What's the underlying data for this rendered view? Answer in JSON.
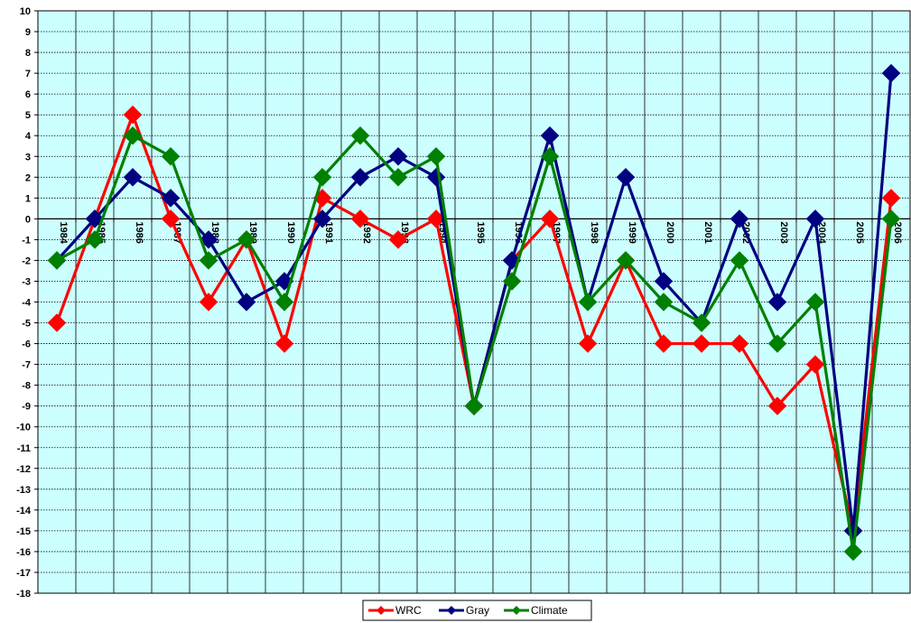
{
  "chart_data": {
    "type": "line",
    "title": "",
    "xlabel": "",
    "ylabel": "",
    "x": [
      "1984",
      "1985",
      "1986",
      "1987",
      "1988",
      "1989",
      "1990",
      "1991",
      "1992",
      "1993",
      "1994",
      "1995",
      "1996",
      "1997",
      "1998",
      "1999",
      "2000",
      "2001",
      "2002",
      "2003",
      "2004",
      "2005",
      "2006"
    ],
    "ylim": [
      -18,
      10
    ],
    "yticks": [
      "10",
      "9",
      "8",
      "7",
      "6",
      "5",
      "4",
      "3",
      "2",
      "1",
      "0",
      "-1",
      "-2",
      "-3",
      "-4",
      "-5",
      "-6",
      "-7",
      "-8",
      "-9",
      "-10",
      "-11",
      "-12",
      "-13",
      "-14",
      "-15",
      "-16",
      "-17",
      "-18"
    ],
    "grid": true,
    "legend_position": "bottom-center",
    "colors": {
      "plot_background": "#ccffff",
      "WRC": "#ff0000",
      "Gray": "#000080",
      "Climate": "#008000"
    },
    "series": [
      {
        "name": "WRC",
        "values": [
          -5,
          0,
          5,
          0,
          -4,
          -1,
          -6,
          1,
          0,
          -1,
          0,
          -9,
          -2,
          0,
          -6,
          -2,
          -6,
          -6,
          -6,
          -9,
          -7,
          -15,
          1
        ]
      },
      {
        "name": "Gray",
        "values": [
          -2,
          0,
          2,
          1,
          -1,
          -4,
          -3,
          0,
          2,
          3,
          2,
          -9,
          -2,
          4,
          -4,
          2,
          -3,
          -5,
          0,
          -4,
          0,
          -15,
          7
        ]
      },
      {
        "name": "Climate",
        "values": [
          -2,
          -1,
          4,
          3,
          -2,
          -1,
          -4,
          2,
          4,
          2,
          3,
          -9,
          -3,
          3,
          -4,
          -2,
          -4,
          -5,
          -2,
          -6,
          -4,
          -16,
          0
        ]
      }
    ]
  }
}
